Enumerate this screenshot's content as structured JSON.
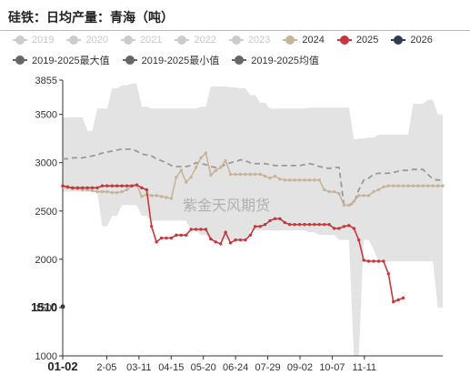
{
  "title": "硅铁：日均产量：青海（吨）",
  "watermark": "紫金天风期货",
  "legend": {
    "row1": [
      {
        "label": "2019",
        "color": "#cccccc",
        "enabled": false
      },
      {
        "label": "2020",
        "color": "#cccccc",
        "enabled": false
      },
      {
        "label": "2021",
        "color": "#cccccc",
        "enabled": false
      },
      {
        "label": "2022",
        "color": "#cccccc",
        "enabled": false
      },
      {
        "label": "2023",
        "color": "#cccccc",
        "enabled": false
      },
      {
        "label": "2024",
        "color": "#c8b49a",
        "enabled": true
      },
      {
        "label": "2025",
        "color": "#c8363b",
        "enabled": true
      },
      {
        "label": "2026",
        "color": "#2f3e4e",
        "enabled": true
      }
    ],
    "row2": [
      {
        "label": "2019-2025最大值",
        "color": "#666666"
      },
      {
        "label": "2019-2025最小值",
        "color": "#666666"
      },
      {
        "label": "2019-2025均值",
        "color": "#666666"
      }
    ]
  },
  "chart_data": {
    "type": "line",
    "title": "硅铁：日均产量：青海（吨）",
    "ylim": [
      1000,
      3855
    ],
    "y_ticks": [
      "1000",
      "1500",
      "2000",
      "2500",
      "3000",
      "3500",
      "3855"
    ],
    "y_highlight": "1510",
    "x_tick_labels": [
      "01-02",
      "2-05",
      "03-11",
      "04-15",
      "05-20",
      "06-24",
      "07-29",
      "09-02",
      "10-07",
      "11-11"
    ],
    "band_max": [
      3470,
      3470,
      3470,
      3470,
      3470,
      3330,
      3330,
      3560,
      3560,
      3560,
      3770,
      3770,
      3800,
      3800,
      3820,
      3820,
      3580,
      3580,
      3560,
      3560,
      3560,
      3560,
      3560,
      3560,
      3560,
      3560,
      3560,
      3560,
      3580,
      3580,
      3790,
      3790,
      3790,
      3790,
      3780,
      3780,
      3770,
      3770,
      3700,
      3700,
      3620,
      3620,
      3560,
      3560,
      3560,
      3560,
      3560,
      3560,
      3560,
      3560,
      3570,
      3570,
      3570,
      3570,
      3570,
      3570,
      3570,
      3570,
      3570,
      3240,
      3250,
      3250,
      3260,
      3260,
      3290,
      3290,
      3290,
      3290,
      3290,
      3290,
      3290,
      3610,
      3610,
      3610,
      3650,
      3650,
      3500,
      3500
    ],
    "band_min": [
      2700,
      2700,
      2700,
      2700,
      2700,
      2700,
      2700,
      2700,
      2340,
      2340,
      2450,
      2450,
      2560,
      2560,
      2560,
      2560,
      2450,
      2450,
      2400,
      2400,
      2400,
      2400,
      2400,
      2400,
      2400,
      2400,
      2300,
      2300,
      2250,
      2250,
      2200,
      2200,
      2200,
      2200,
      2200,
      2200,
      2200,
      2200,
      2300,
      2300,
      2300,
      2300,
      2300,
      2300,
      2300,
      2300,
      2300,
      2300,
      2300,
      2300,
      2280,
      2280,
      2250,
      2250,
      2250,
      2250,
      2200,
      2200,
      2200,
      1000,
      1000,
      2200,
      2200,
      2100,
      1980,
      1980,
      1980,
      1980,
      1980,
      1980,
      1980,
      1980,
      1980,
      1980,
      1980,
      1980,
      1500,
      1500
    ],
    "series": [
      {
        "name": "2024",
        "values": [
          2750,
          2740,
          2730,
          2730,
          2720,
          2720,
          2710,
          2700,
          2700,
          2700,
          2690,
          2690,
          2700,
          2720,
          2760,
          2770,
          2650,
          2670,
          2660,
          2660,
          2650,
          2640,
          2630,
          2850,
          2920,
          2800,
          2850,
          2950,
          3050,
          3100,
          2870,
          2920,
          2950,
          3020,
          2880,
          2880,
          2880,
          2880,
          2880,
          2880,
          2880,
          2860,
          2840,
          2860,
          2830,
          2820,
          2820,
          2820,
          2820,
          2820,
          2820,
          2820,
          2820,
          2720,
          2700,
          2700,
          2680,
          2560,
          2560,
          2600,
          2660,
          2660,
          2660,
          2700,
          2720,
          2750,
          2760,
          2760,
          2760,
          2760,
          2760,
          2760,
          2760,
          2760,
          2760,
          2760,
          2760,
          2760
        ]
      },
      {
        "name": "2025",
        "values": [
          2760,
          2750,
          2740,
          2740,
          2740,
          2740,
          2740,
          2740,
          2760,
          2760,
          2760,
          2760,
          2760,
          2760,
          2760,
          2770,
          2740,
          2720,
          2340,
          2180,
          2220,
          2220,
          2220,
          2250,
          2250,
          2250,
          2310,
          2310,
          2310,
          2310,
          2210,
          2180,
          2160,
          2280,
          2170,
          2200,
          2200,
          2200,
          2250,
          2340,
          2340,
          2360,
          2400,
          2420,
          2420,
          2380,
          2360,
          2360,
          2360,
          2360,
          2360,
          2360,
          2360,
          2360,
          2360,
          2320,
          2320,
          2340,
          2350,
          2320,
          2200,
          1990,
          1980,
          1980,
          1980,
          1980,
          1850,
          1560,
          1580,
          1600
        ]
      },
      {
        "name": "2026",
        "values": [
          1510
        ]
      },
      {
        "name": "2019-2025均值",
        "values": [
          3040,
          3040,
          3050,
          3050,
          3050,
          3060,
          3070,
          3080,
          3100,
          3110,
          3120,
          3130,
          3140,
          3140,
          3140,
          3120,
          3090,
          3080,
          3070,
          3040,
          3020,
          3000,
          2970,
          2960,
          2960,
          2960,
          2970,
          3000,
          2990,
          2980,
          2960,
          2950,
          2960,
          2980,
          3000,
          3010,
          3030,
          3020,
          3000,
          2990,
          2990,
          2990,
          2980,
          2970,
          2970,
          2970,
          2970,
          2970,
          2970,
          2980,
          2990,
          2980,
          2960,
          2950,
          2940,
          2950,
          2950,
          2560,
          2560,
          2580,
          2720,
          2820,
          2840,
          2880,
          2890,
          2890,
          2890,
          2900,
          2910,
          2920,
          2920,
          2930,
          2930,
          2930,
          2880,
          2830,
          2820,
          2820
        ]
      }
    ]
  }
}
